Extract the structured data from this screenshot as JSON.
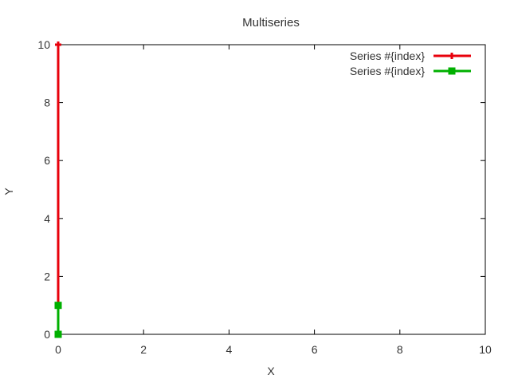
{
  "chart_data": {
    "type": "line",
    "title": "Multiseries",
    "xlabel": "X",
    "ylabel": "Y",
    "xlim": [
      0,
      10
    ],
    "ylim": [
      0,
      10
    ],
    "xticks": [
      "0",
      "2",
      "4",
      "6",
      "8",
      "10"
    ],
    "yticks": [
      "0",
      "2",
      "4",
      "6",
      "8",
      "10"
    ],
    "grid": false,
    "legend": "top-right",
    "series": [
      {
        "name": "Series #{index}",
        "color": "#e8000b",
        "marker": "plus",
        "x": [
          0,
          0
        ],
        "y": [
          0,
          10
        ]
      },
      {
        "name": "Series #{index}",
        "color": "#00b000",
        "marker": "square",
        "x": [
          0,
          0
        ],
        "y": [
          0,
          1
        ]
      }
    ]
  }
}
